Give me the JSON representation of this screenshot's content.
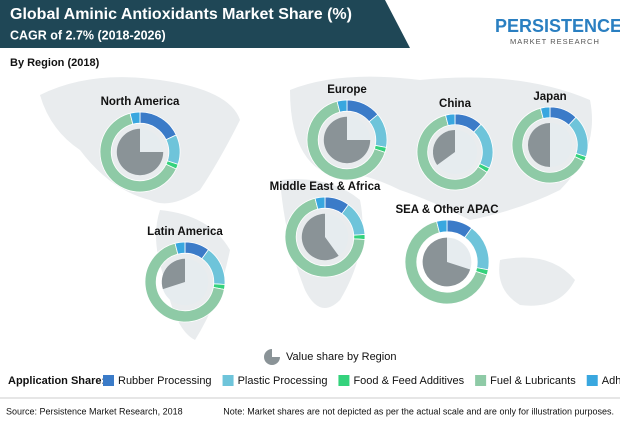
{
  "chart_data": {
    "type": "donut",
    "title": "Global Aminic Antioxidants Market Share (%)",
    "subtitle": "CAGR of 2.7% (2018-2026)",
    "section_label": "By Region (2018)",
    "logo": {
      "name": "PERSISTENCE",
      "tagline": "MARKET RESEARCH"
    },
    "categories": [
      "North America",
      "Europe",
      "China",
      "Japan",
      "Middle East & Africa",
      "Latin America",
      "SEA & Other APAC"
    ],
    "legend_title": "Application Share:",
    "series": [
      {
        "name": "Rubber Processing",
        "color": "#3b7bc8",
        "values": [
          18,
          14,
          12,
          12,
          10,
          10,
          10
        ]
      },
      {
        "name": "Plastic Processing",
        "color": "#6ec4da",
        "values": [
          12,
          14,
          20,
          18,
          14,
          16,
          18
        ]
      },
      {
        "name": "Food & Feed Additives",
        "color": "#34d27c",
        "values": [
          2,
          2,
          2,
          2,
          2,
          2,
          2
        ]
      },
      {
        "name": "Fuel & Lubricants",
        "color": "#8ecaa6",
        "values": [
          64,
          66,
          62,
          64,
          70,
          68,
          66
        ]
      },
      {
        "name": "Adhesives",
        "color": "#39a7df",
        "values": [
          4,
          4,
          4,
          4,
          4,
          4,
          4
        ]
      }
    ],
    "region_share": {
      "name": "Value share by Region",
      "color": "#8a9397",
      "values": [
        75,
        75,
        35,
        50,
        60,
        30,
        70
      ]
    },
    "source": "Source: Persistence Market Research, 2018",
    "note": "Note: Market shares are not depicted as per the actual scale and are only for illustration purposes."
  }
}
